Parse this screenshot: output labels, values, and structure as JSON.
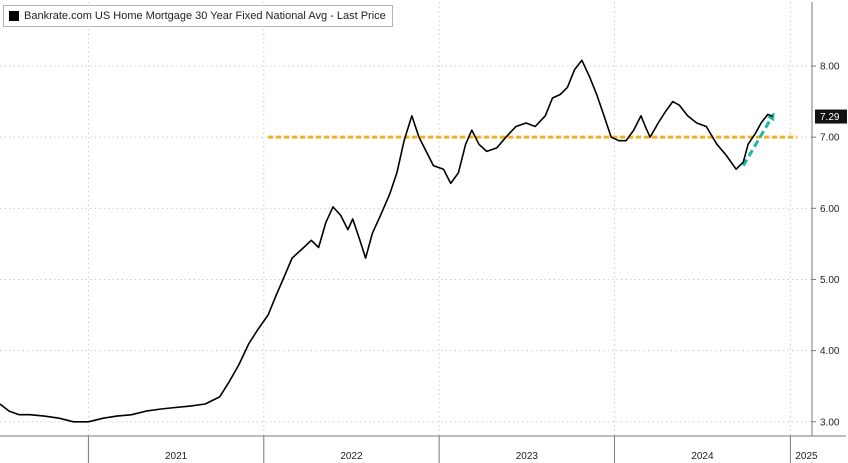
{
  "chart_data": {
    "type": "line",
    "title": "",
    "xlabel": "",
    "ylabel": "",
    "legend": {
      "position": "top-left",
      "entries": [
        {
          "label": "Bankrate.com US Home Mortgage 30 Year Fixed National Avg - Last Price",
          "color": "#000000"
        }
      ]
    },
    "grid": true,
    "x_range": [
      "2020-07-01",
      "2025-02-15"
    ],
    "x_ticks": [
      "2021",
      "2022",
      "2023",
      "2024",
      "2025"
    ],
    "y_range": [
      2.8,
      8.9
    ],
    "y_ticks": [
      "3.00",
      "4.00",
      "5.00",
      "6.00",
      "7.00",
      "8.00"
    ],
    "last_value_label": "7.29",
    "series": [
      {
        "color": "#000000",
        "points": [
          [
            "2020-07-01",
            3.25
          ],
          [
            "2020-07-20",
            3.15
          ],
          [
            "2020-08-10",
            3.1
          ],
          [
            "2020-09-01",
            3.1
          ],
          [
            "2020-10-01",
            3.08
          ],
          [
            "2020-11-01",
            3.05
          ],
          [
            "2020-12-01",
            3.0
          ],
          [
            "2021-01-01",
            3.0
          ],
          [
            "2021-02-01",
            3.05
          ],
          [
            "2021-03-01",
            3.08
          ],
          [
            "2021-04-01",
            3.1
          ],
          [
            "2021-05-01",
            3.15
          ],
          [
            "2021-06-01",
            3.18
          ],
          [
            "2021-07-01",
            3.2
          ],
          [
            "2021-08-01",
            3.22
          ],
          [
            "2021-09-01",
            3.25
          ],
          [
            "2021-10-01",
            3.35
          ],
          [
            "2021-10-20",
            3.55
          ],
          [
            "2021-11-10",
            3.8
          ],
          [
            "2021-12-01",
            4.1
          ],
          [
            "2021-12-20",
            4.3
          ],
          [
            "2022-01-10",
            4.5
          ],
          [
            "2022-01-25",
            4.75
          ],
          [
            "2022-02-10",
            5.0
          ],
          [
            "2022-03-01",
            5.3
          ],
          [
            "2022-03-25",
            5.45
          ],
          [
            "2022-04-10",
            5.55
          ],
          [
            "2022-04-25",
            5.45
          ],
          [
            "2022-05-10",
            5.8
          ],
          [
            "2022-05-25",
            6.02
          ],
          [
            "2022-06-10",
            5.9
          ],
          [
            "2022-06-25",
            5.7
          ],
          [
            "2022-07-05",
            5.85
          ],
          [
            "2022-07-20",
            5.55
          ],
          [
            "2022-08-01",
            5.3
          ],
          [
            "2022-08-15",
            5.65
          ],
          [
            "2022-09-01",
            5.9
          ],
          [
            "2022-09-20",
            6.2
          ],
          [
            "2022-10-05",
            6.5
          ],
          [
            "2022-10-20",
            6.95
          ],
          [
            "2022-11-05",
            7.3
          ],
          [
            "2022-11-20",
            7.0
          ],
          [
            "2022-12-05",
            6.8
          ],
          [
            "2022-12-20",
            6.6
          ],
          [
            "2023-01-10",
            6.55
          ],
          [
            "2023-01-25",
            6.35
          ],
          [
            "2023-02-10",
            6.5
          ],
          [
            "2023-02-25",
            6.9
          ],
          [
            "2023-03-10",
            7.1
          ],
          [
            "2023-03-25",
            6.9
          ],
          [
            "2023-04-10",
            6.8
          ],
          [
            "2023-05-01",
            6.85
          ],
          [
            "2023-05-20",
            7.0
          ],
          [
            "2023-06-10",
            7.15
          ],
          [
            "2023-07-01",
            7.2
          ],
          [
            "2023-07-20",
            7.15
          ],
          [
            "2023-08-10",
            7.3
          ],
          [
            "2023-08-25",
            7.55
          ],
          [
            "2023-09-10",
            7.6
          ],
          [
            "2023-09-25",
            7.7
          ],
          [
            "2023-10-10",
            7.95
          ],
          [
            "2023-10-25",
            8.08
          ],
          [
            "2023-11-10",
            7.85
          ],
          [
            "2023-11-25",
            7.6
          ],
          [
            "2023-12-10",
            7.3
          ],
          [
            "2023-12-25",
            7.0
          ],
          [
            "2024-01-10",
            6.95
          ],
          [
            "2024-01-25",
            6.95
          ],
          [
            "2024-02-10",
            7.1
          ],
          [
            "2024-02-25",
            7.3
          ],
          [
            "2024-03-05",
            7.15
          ],
          [
            "2024-03-15",
            7.0
          ],
          [
            "2024-04-01",
            7.2
          ],
          [
            "2024-04-15",
            7.35
          ],
          [
            "2024-05-01",
            7.5
          ],
          [
            "2024-05-15",
            7.45
          ],
          [
            "2024-06-01",
            7.3
          ],
          [
            "2024-06-20",
            7.2
          ],
          [
            "2024-07-10",
            7.15
          ],
          [
            "2024-08-01",
            6.9
          ],
          [
            "2024-08-20",
            6.75
          ],
          [
            "2024-09-10",
            6.55
          ],
          [
            "2024-09-25",
            6.65
          ],
          [
            "2024-10-05",
            6.9
          ],
          [
            "2024-10-20",
            7.05
          ],
          [
            "2024-11-01",
            7.2
          ],
          [
            "2024-11-15",
            7.32
          ],
          [
            "2024-11-25",
            7.29
          ]
        ]
      }
    ],
    "annotations": [
      {
        "type": "hline",
        "y": 7.0,
        "x_start": "2022-01-10",
        "x_end": "2025-01-15",
        "color": "#f0b21a",
        "style": "dashed"
      },
      {
        "type": "arrow",
        "from": [
          "2024-09-25",
          6.6
        ],
        "to": [
          "2024-11-25",
          7.3
        ],
        "color": "#17b8a6",
        "style": "dashed"
      }
    ]
  }
}
